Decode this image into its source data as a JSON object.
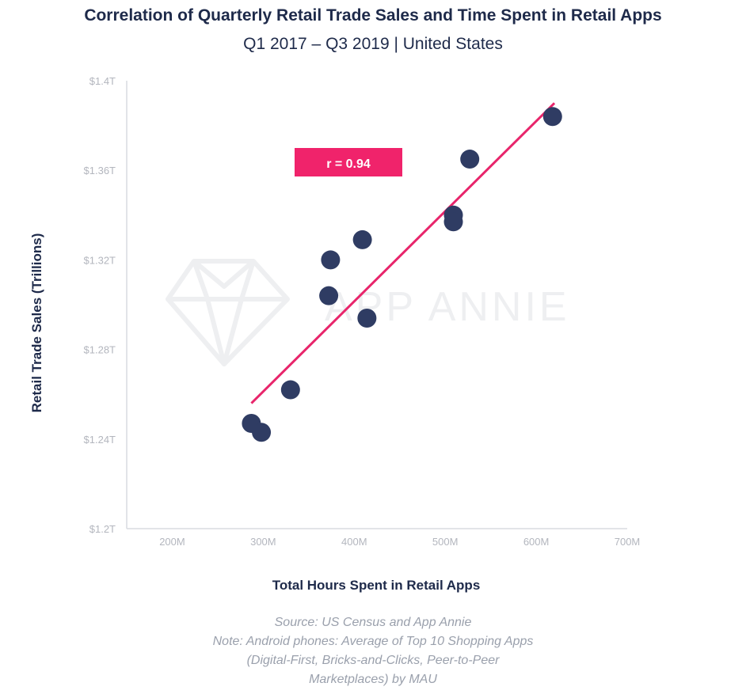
{
  "title": "Correlation of Quarterly Retail Trade Sales and Time Spent in Retail Apps",
  "subtitle": "Q1 2017 – Q3 2019 | United States",
  "watermark": "APP ANNIE",
  "notes": [
    "Source: US Census and App Annie",
    "Note: Android phones: Average of Top 10 Shopping Apps",
    "(Digital-First, Bricks-and-Clicks, Peer-to-Peer",
    "Marketplaces) by MAU"
  ],
  "colors": {
    "points": "#2f3c63",
    "trendline": "#e8256b",
    "annotation_bg": "#f0236b",
    "axis": "#d9dbe0"
  },
  "chart_data": {
    "type": "scatter",
    "xlabel": "Total Hours Spent in Retail Apps",
    "ylabel": "Retail Trade Sales (Trillions)",
    "xlim": [
      150,
      700
    ],
    "ylim": [
      1.2,
      1.4
    ],
    "x_ticks": [
      200,
      300,
      400,
      500,
      600,
      700
    ],
    "x_tick_labels": [
      "200M",
      "300M",
      "400M",
      "500M",
      "600M",
      "700M"
    ],
    "y_ticks": [
      1.2,
      1.24,
      1.28,
      1.32,
      1.36,
      1.4
    ],
    "y_tick_labels": [
      "$1.2T",
      "$1.24T",
      "$1.28T",
      "$1.32T",
      "$1.36T",
      "$1.4T"
    ],
    "annotation": "r = 0.94",
    "grid": false,
    "points": [
      {
        "x": 287,
        "y": 1.247
      },
      {
        "x": 298,
        "y": 1.243
      },
      {
        "x": 330,
        "y": 1.262
      },
      {
        "x": 372,
        "y": 1.304
      },
      {
        "x": 374,
        "y": 1.32
      },
      {
        "x": 409,
        "y": 1.329
      },
      {
        "x": 414,
        "y": 1.294
      },
      {
        "x": 509,
        "y": 1.34
      },
      {
        "x": 509,
        "y": 1.337
      },
      {
        "x": 527,
        "y": 1.365
      },
      {
        "x": 618,
        "y": 1.384
      }
    ],
    "trendline": {
      "x": [
        287,
        620
      ],
      "y": [
        1.256,
        1.39
      ]
    }
  }
}
